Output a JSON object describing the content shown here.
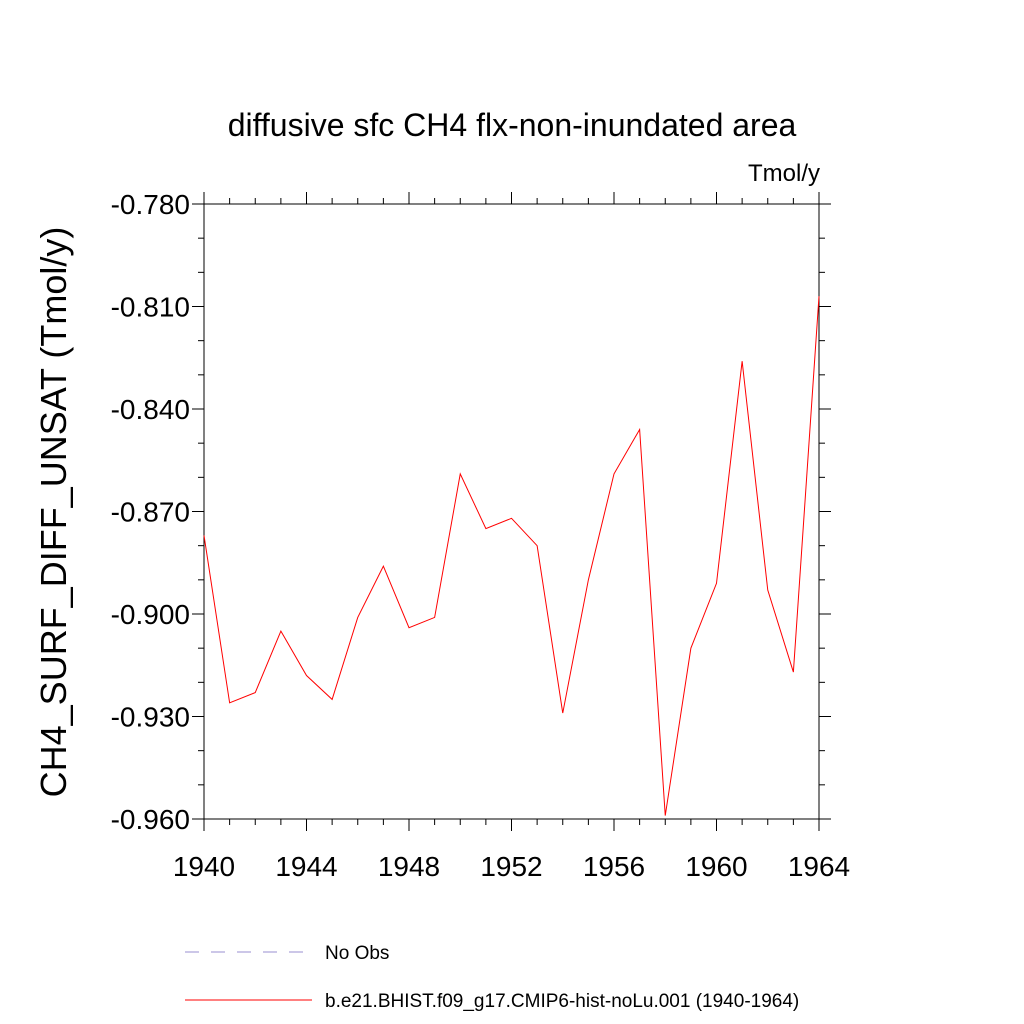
{
  "chart_data": {
    "type": "line",
    "title": "diffusive sfc CH4 flx-non-inundated area",
    "units_label": "Tmol/y",
    "xlabel": "",
    "ylabel": "CH4_SURF_DIFF_UNSAT  (Tmol/y)",
    "xlim": [
      1940,
      1964
    ],
    "ylim": [
      -0.96,
      -0.78
    ],
    "xticks": [
      1940,
      1944,
      1948,
      1952,
      1956,
      1960,
      1964
    ],
    "xtick_labels": [
      "1940",
      "1944",
      "1948",
      "1952",
      "1956",
      "1960",
      "1964"
    ],
    "yticks": [
      -0.78,
      -0.81,
      -0.84,
      -0.87,
      -0.9,
      -0.93,
      -0.96
    ],
    "ytick_labels": [
      "-0.780",
      "-0.810",
      "-0.840",
      "-0.870",
      "-0.900",
      "-0.930",
      "-0.960"
    ],
    "grid": false,
    "legend_position": "bottom",
    "series": [
      {
        "name": "No Obs",
        "color": "#9a8fd0",
        "dashed": true,
        "x": [],
        "values": []
      },
      {
        "name": "b.e21.BHIST.f09_g17.CMIP6-hist-noLu.001 (1940-1964)",
        "color": "#ff0000",
        "dashed": false,
        "x": [
          1940,
          1941,
          1942,
          1943,
          1944,
          1945,
          1946,
          1947,
          1948,
          1949,
          1950,
          1951,
          1952,
          1953,
          1954,
          1955,
          1956,
          1957,
          1958,
          1959,
          1960,
          1961,
          1962,
          1963,
          1964
        ],
        "values": [
          -0.877,
          -0.926,
          -0.923,
          -0.905,
          -0.918,
          -0.925,
          -0.901,
          -0.886,
          -0.904,
          -0.901,
          -0.859,
          -0.875,
          -0.872,
          -0.88,
          -0.929,
          -0.89,
          -0.859,
          -0.846,
          -0.959,
          -0.91,
          -0.891,
          -0.826,
          -0.893,
          -0.917,
          -0.807
        ]
      }
    ]
  }
}
